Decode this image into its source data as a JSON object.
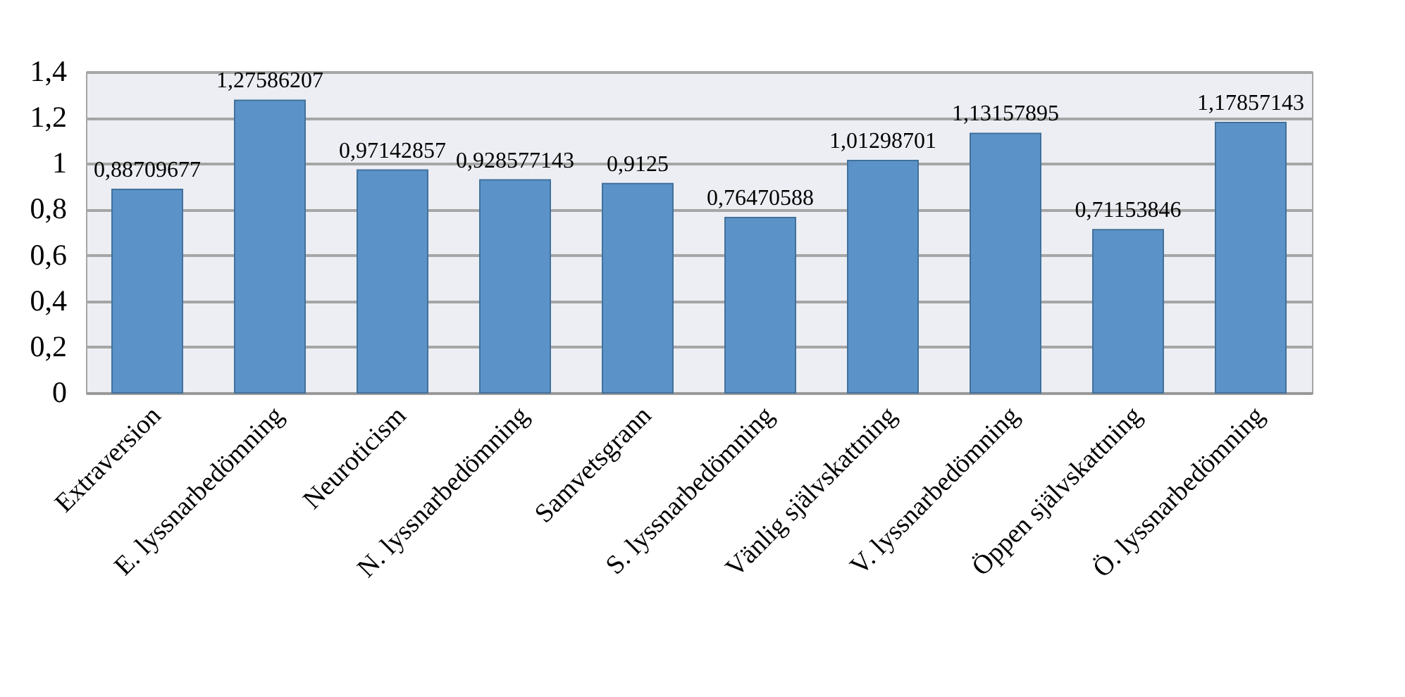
{
  "chart_data": {
    "type": "bar",
    "categories": [
      "Extraversion",
      "E. lyssnarbedömning",
      "Neuroticism",
      "N. lyssnarbedömning",
      "Samvetsgrann",
      "S. lyssnarbedömning",
      "Vänlig självskattning",
      "V. lyssnarbedömning",
      "Öppen självskattning",
      "Ö. lyssnarbedömning"
    ],
    "values": [
      0.88709677,
      1.27586207,
      0.97142857,
      0.928577143,
      0.9125,
      0.76470588,
      1.01298701,
      1.13157895,
      0.71153846,
      1.17857143
    ],
    "value_labels": [
      "0,88709677",
      "1,27586207",
      "0,97142857",
      "0,928577143",
      "0,9125",
      "0,76470588",
      "1,01298701",
      "1,13157895",
      "0,71153846",
      "1,17857143"
    ],
    "color": "#5b93c8",
    "ylim": [
      0,
      1.4
    ],
    "yticks": [
      {
        "value": 0,
        "label": "0"
      },
      {
        "value": 0.2,
        "label": "0,2"
      },
      {
        "value": 0.4,
        "label": "0,4"
      },
      {
        "value": 0.6,
        "label": "0,6"
      },
      {
        "value": 0.8,
        "label": "0,8"
      },
      {
        "value": 1,
        "label": "1"
      },
      {
        "value": 1.2,
        "label": "1,2"
      },
      {
        "value": 1.4,
        "label": "1,4"
      }
    ],
    "grid": "y"
  }
}
